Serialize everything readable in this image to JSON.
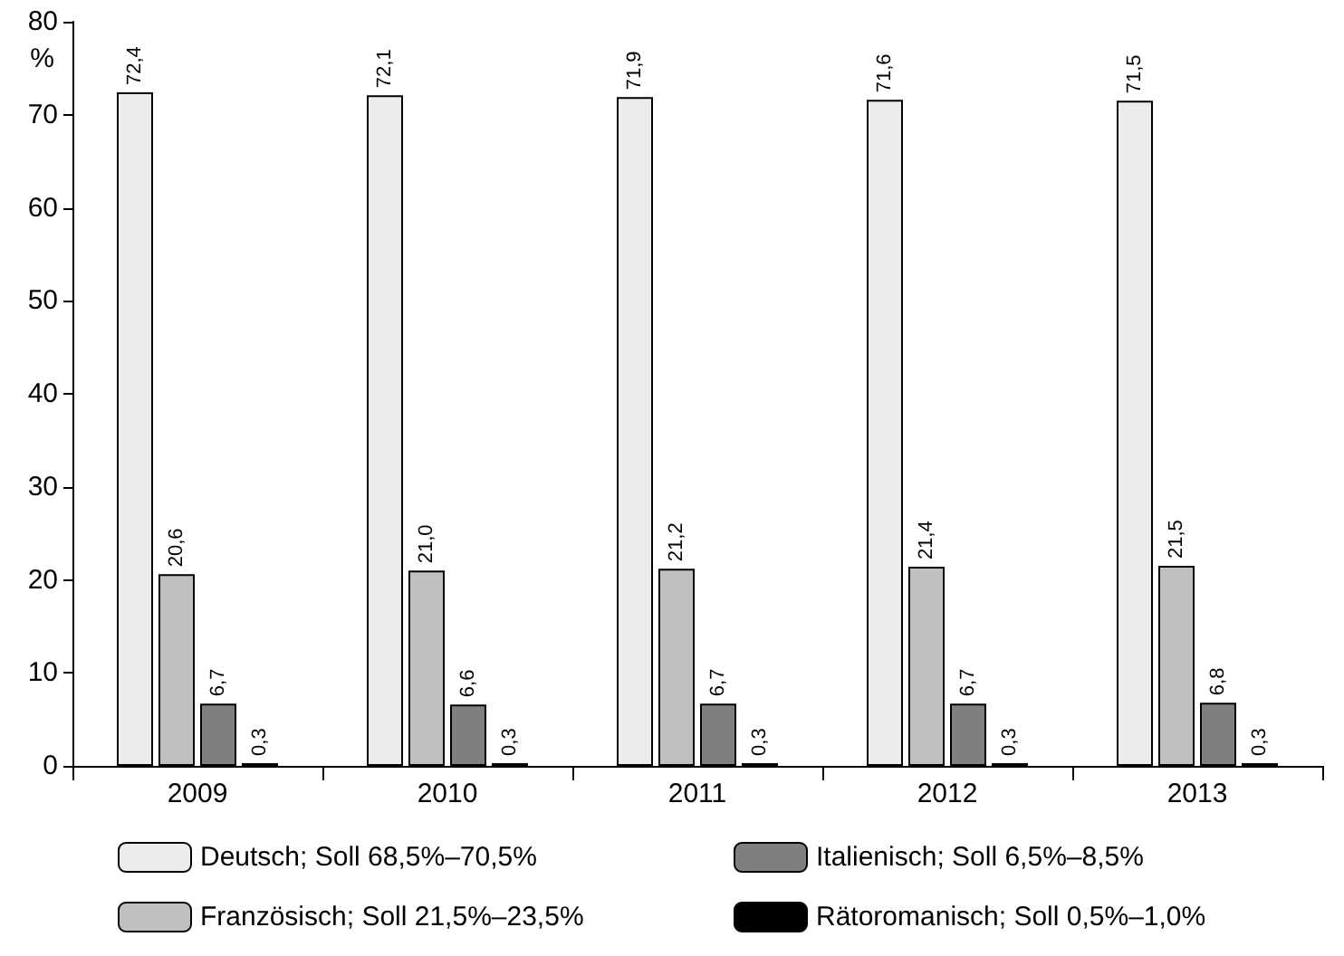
{
  "chart_data": {
    "type": "bar",
    "ylabel": "%",
    "categories": [
      "2009",
      "2010",
      "2011",
      "2012",
      "2013"
    ],
    "series": [
      {
        "name": "Deutsch; Soll 68,5%–70,5%",
        "color": "#ececec",
        "values": [
          72.4,
          72.1,
          71.9,
          71.6,
          71.5
        ],
        "value_labels": [
          "72,4",
          "72,1",
          "71,9",
          "71,6",
          "71,5"
        ]
      },
      {
        "name": "Französisch; Soll 21,5%–23,5%",
        "color": "#c0c0c0",
        "values": [
          20.6,
          21.0,
          21.2,
          21.4,
          21.5
        ],
        "value_labels": [
          "20,6",
          "21,0",
          "21,2",
          "21,4",
          "21,5"
        ]
      },
      {
        "name": "Italienisch; Soll 6,5%–8,5%",
        "color": "#7f7f7f",
        "values": [
          6.7,
          6.6,
          6.7,
          6.7,
          6.8
        ],
        "value_labels": [
          "6,7",
          "6,6",
          "6,7",
          "6,7",
          "6,8"
        ]
      },
      {
        "name": "Rätoromanisch; Soll 0,5%–1,0%",
        "color": "#000000",
        "values": [
          0.3,
          0.3,
          0.3,
          0.3,
          0.3
        ],
        "value_labels": [
          "0,3",
          "0,3",
          "0,3",
          "0,3",
          "0,3"
        ]
      }
    ],
    "ylim": [
      0,
      80
    ],
    "yticks": [
      0,
      10,
      20,
      30,
      40,
      50,
      60,
      70,
      80
    ],
    "grid": false,
    "legend": "bottom"
  }
}
